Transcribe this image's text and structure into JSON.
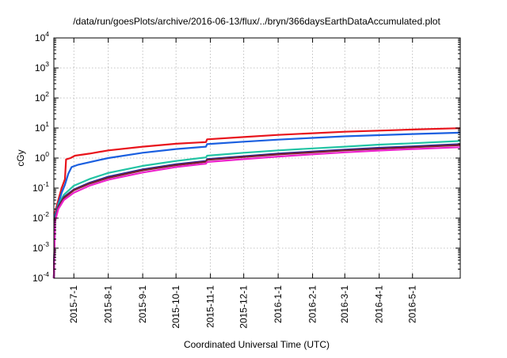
{
  "chart_data": {
    "type": "line",
    "title": "/data/run/goesPlots/archive/2016-06-13/flux/../bryn/366daysEarthDataAccumulated.plot",
    "xlabel": "Coordinated Universal Time (UTC)",
    "ylabel": "cGy",
    "y_scale": "log",
    "ylim": [
      0.0001,
      10000
    ],
    "xlim": [
      "2015-06-13",
      "2016-06-13"
    ],
    "y_ticks": [
      {
        "base": "10",
        "exp": "-4",
        "value": 0.0001
      },
      {
        "base": "10",
        "exp": "-3",
        "value": 0.001
      },
      {
        "base": "10",
        "exp": "-2",
        "value": 0.01
      },
      {
        "base": "10",
        "exp": "-1",
        "value": 0.1
      },
      {
        "base": "10",
        "exp": "0",
        "value": 1
      },
      {
        "base": "10",
        "exp": "1",
        "value": 10
      },
      {
        "base": "10",
        "exp": "2",
        "value": 100
      },
      {
        "base": "10",
        "exp": "3",
        "value": 1000
      },
      {
        "base": "10",
        "exp": "4",
        "value": 10000
      }
    ],
    "x_ticks": [
      {
        "label": "2015-7-1",
        "date": "2015-07-01"
      },
      {
        "label": "2015-8-1",
        "date": "2015-08-01"
      },
      {
        "label": "2015-9-1",
        "date": "2015-09-01"
      },
      {
        "label": "2015-10-1",
        "date": "2015-10-01"
      },
      {
        "label": "2015-11-1",
        "date": "2015-11-01"
      },
      {
        "label": "2015-12-1",
        "date": "2015-12-01"
      },
      {
        "label": "2016-1-1",
        "date": "2016-01-01"
      },
      {
        "label": "2016-2-1",
        "date": "2016-02-01"
      },
      {
        "label": "2016-3-1",
        "date": "2016-03-01"
      },
      {
        "label": "2016-4-1",
        "date": "2016-04-01"
      },
      {
        "label": "2016-5-1",
        "date": "2016-05-01"
      }
    ],
    "grid": true,
    "legend": "none",
    "series": [
      {
        "color": "#e8141c",
        "points": [
          [
            "2015-06-13",
            0.0001
          ],
          [
            "2015-06-14",
            0.015
          ],
          [
            "2015-06-17",
            0.04
          ],
          [
            "2015-06-20",
            0.1
          ],
          [
            "2015-06-23",
            0.2
          ],
          [
            "2015-06-24",
            0.9
          ],
          [
            "2015-06-28",
            1.0
          ],
          [
            "2015-07-02",
            1.2
          ],
          [
            "2015-07-15",
            1.4
          ],
          [
            "2015-08-01",
            1.8
          ],
          [
            "2015-09-01",
            2.4
          ],
          [
            "2015-10-01",
            3.0
          ],
          [
            "2015-10-28",
            3.4
          ],
          [
            "2015-10-29",
            4.2
          ],
          [
            "2015-12-01",
            5.0
          ],
          [
            "2016-01-01",
            5.9
          ],
          [
            "2016-02-01",
            6.7
          ],
          [
            "2016-03-01",
            7.5
          ],
          [
            "2016-04-01",
            8.2
          ],
          [
            "2016-05-01",
            8.9
          ],
          [
            "2016-06-13",
            9.9
          ]
        ]
      },
      {
        "color": "#1a5fe0",
        "points": [
          [
            "2015-06-13",
            0.0001
          ],
          [
            "2015-06-14",
            0.012
          ],
          [
            "2015-06-17",
            0.03
          ],
          [
            "2015-06-20",
            0.07
          ],
          [
            "2015-06-23",
            0.13
          ],
          [
            "2015-06-26",
            0.3
          ],
          [
            "2015-06-29",
            0.5
          ],
          [
            "2015-07-05",
            0.6
          ],
          [
            "2015-08-01",
            1.0
          ],
          [
            "2015-09-01",
            1.5
          ],
          [
            "2015-10-01",
            2.0
          ],
          [
            "2015-10-28",
            2.4
          ],
          [
            "2015-10-29",
            2.9
          ],
          [
            "2015-12-01",
            3.5
          ],
          [
            "2016-01-01",
            4.1
          ],
          [
            "2016-02-01",
            4.7
          ],
          [
            "2016-03-01",
            5.3
          ],
          [
            "2016-04-01",
            5.8
          ],
          [
            "2016-05-01",
            6.3
          ],
          [
            "2016-06-13",
            7.0
          ]
        ]
      },
      {
        "color": "#22c4a4",
        "points": [
          [
            "2015-06-13",
            0.0001
          ],
          [
            "2015-06-14",
            0.01
          ],
          [
            "2015-06-17",
            0.028
          ],
          [
            "2015-06-22",
            0.06
          ],
          [
            "2015-07-01",
            0.12
          ],
          [
            "2015-07-15",
            0.2
          ],
          [
            "2015-08-01",
            0.32
          ],
          [
            "2015-09-01",
            0.55
          ],
          [
            "2015-10-01",
            0.8
          ],
          [
            "2015-10-28",
            1.05
          ],
          [
            "2015-10-29",
            1.2
          ],
          [
            "2015-12-01",
            1.5
          ],
          [
            "2016-01-01",
            1.8
          ],
          [
            "2016-02-01",
            2.1
          ],
          [
            "2016-03-01",
            2.4
          ],
          [
            "2016-04-01",
            2.8
          ],
          [
            "2016-05-01",
            3.1
          ],
          [
            "2016-06-13",
            3.7
          ]
        ]
      },
      {
        "color": "#2a2a9a",
        "points": [
          [
            "2015-06-13",
            0.0001
          ],
          [
            "2015-06-14",
            0.009
          ],
          [
            "2015-06-17",
            0.025
          ],
          [
            "2015-06-22",
            0.05
          ],
          [
            "2015-07-01",
            0.09
          ],
          [
            "2015-07-15",
            0.15
          ],
          [
            "2015-08-01",
            0.24
          ],
          [
            "2015-09-01",
            0.42
          ],
          [
            "2015-10-01",
            0.62
          ],
          [
            "2015-10-28",
            0.8
          ],
          [
            "2015-10-29",
            0.92
          ],
          [
            "2015-12-01",
            1.15
          ],
          [
            "2016-01-01",
            1.4
          ],
          [
            "2016-02-01",
            1.65
          ],
          [
            "2016-03-01",
            1.9
          ],
          [
            "2016-04-01",
            2.2
          ],
          [
            "2016-05-01",
            2.45
          ],
          [
            "2016-06-13",
            2.9
          ]
        ]
      },
      {
        "color": "#7a1f2e",
        "points": [
          [
            "2015-06-13",
            0.0001
          ],
          [
            "2015-06-14",
            0.0085
          ],
          [
            "2015-06-17",
            0.023
          ],
          [
            "2015-06-22",
            0.047
          ],
          [
            "2015-07-01",
            0.085
          ],
          [
            "2015-07-15",
            0.14
          ],
          [
            "2015-08-01",
            0.22
          ],
          [
            "2015-09-01",
            0.39
          ],
          [
            "2015-10-01",
            0.58
          ],
          [
            "2015-10-28",
            0.75
          ],
          [
            "2015-10-29",
            0.87
          ],
          [
            "2015-12-01",
            1.08
          ],
          [
            "2016-01-01",
            1.32
          ],
          [
            "2016-02-01",
            1.55
          ],
          [
            "2016-03-01",
            1.8
          ],
          [
            "2016-04-01",
            2.05
          ],
          [
            "2016-05-01",
            2.3
          ],
          [
            "2016-06-13",
            2.7
          ]
        ]
      },
      {
        "color": "#ee22cc",
        "points": [
          [
            "2015-06-13",
            0.0001
          ],
          [
            "2015-06-14",
            0.0075
          ],
          [
            "2015-06-17",
            0.02
          ],
          [
            "2015-06-22",
            0.04
          ],
          [
            "2015-07-01",
            0.07
          ],
          [
            "2015-07-15",
            0.12
          ],
          [
            "2015-08-01",
            0.19
          ],
          [
            "2015-09-01",
            0.33
          ],
          [
            "2015-10-01",
            0.5
          ],
          [
            "2015-10-28",
            0.65
          ],
          [
            "2015-10-29",
            0.74
          ],
          [
            "2015-12-01",
            0.92
          ],
          [
            "2016-01-01",
            1.12
          ],
          [
            "2016-02-01",
            1.33
          ],
          [
            "2016-03-01",
            1.55
          ],
          [
            "2016-04-01",
            1.78
          ],
          [
            "2016-05-01",
            2.0
          ],
          [
            "2016-06-13",
            2.3
          ]
        ]
      }
    ]
  }
}
